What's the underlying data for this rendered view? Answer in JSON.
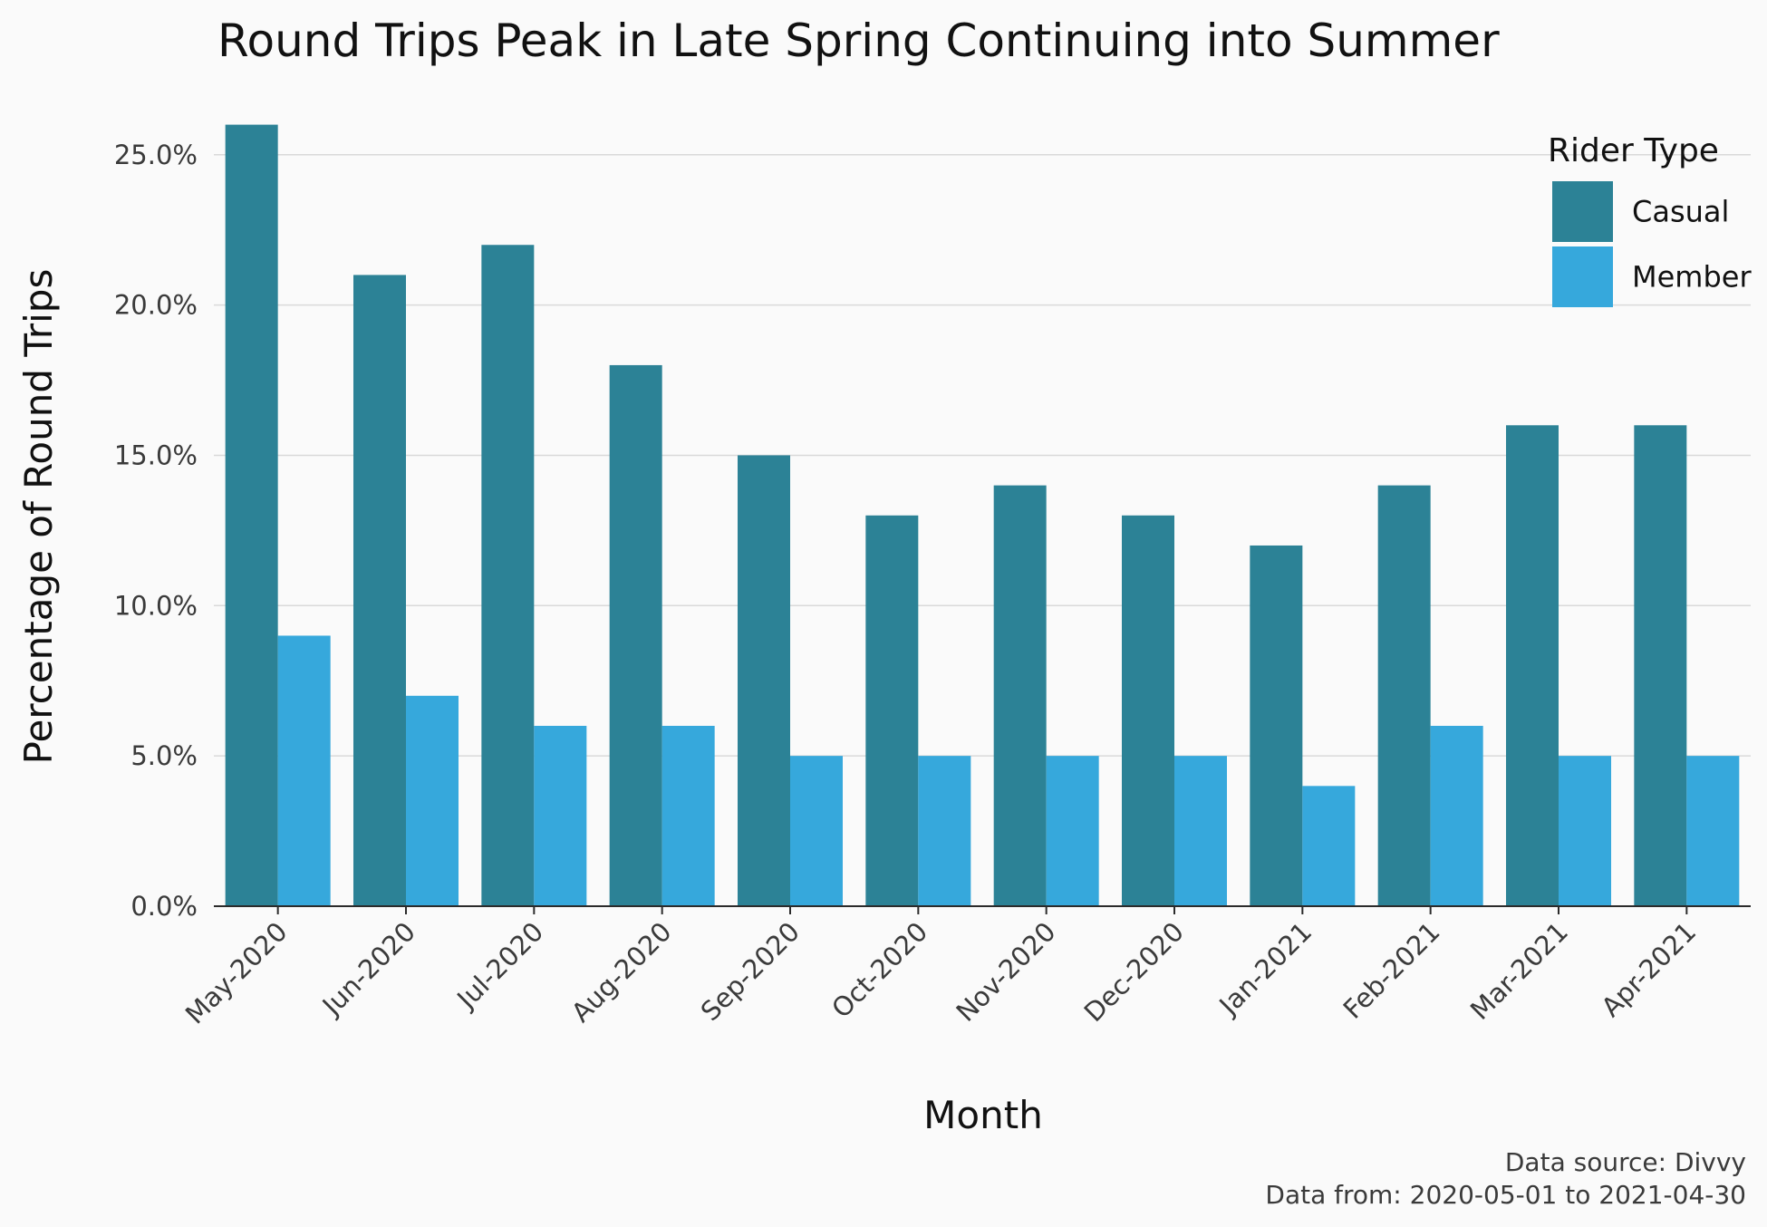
{
  "chart_data": {
    "type": "bar",
    "title": "Round Trips Peak in Late Spring Continuing into Summer",
    "xlabel": "Month",
    "ylabel": "Percentage of Round Trips",
    "categories": [
      "May-2020",
      "Jun-2020",
      "Jul-2020",
      "Aug-2020",
      "Sep-2020",
      "Oct-2020",
      "Nov-2020",
      "Dec-2020",
      "Jan-2021",
      "Feb-2021",
      "Mar-2021",
      "Apr-2021"
    ],
    "series": [
      {
        "name": "Casual",
        "color": "#2c8296",
        "values": [
          26,
          21,
          22,
          18,
          15,
          13,
          14,
          13,
          12,
          14,
          16,
          16
        ]
      },
      {
        "name": "Member",
        "color": "#36a8dc",
        "values": [
          9,
          7,
          6,
          6,
          5,
          5,
          5,
          5,
          4,
          6,
          5,
          5
        ]
      }
    ],
    "ylim": [
      0,
      26
    ],
    "yticks": [
      0,
      5,
      10,
      15,
      20,
      25
    ],
    "ytick_labels": [
      "0.0%",
      "5.0%",
      "10.0%",
      "15.0%",
      "20.0%",
      "25.0%"
    ],
    "grid": true,
    "legend": {
      "title": "Rider Type",
      "position": "top-right"
    },
    "caption": [
      "Data source: Divvy",
      "Data from: 2020-05-01 to 2021-04-30"
    ]
  }
}
